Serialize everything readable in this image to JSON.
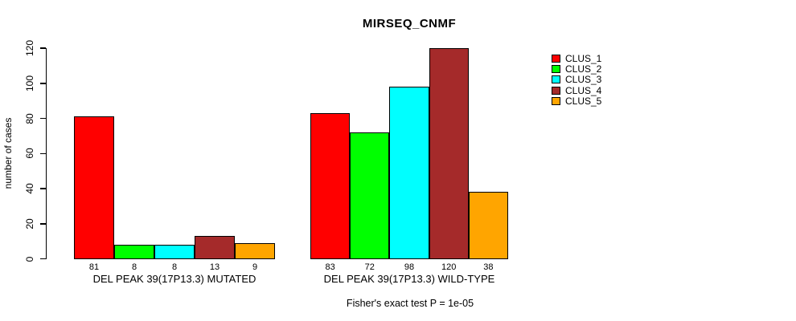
{
  "title": "MIRSEQ_CNMF",
  "chart_data": {
    "type": "bar",
    "title": "MIRSEQ_CNMF",
    "ylabel": "number of cases",
    "ylim": [
      0,
      120
    ],
    "yticks": [
      0,
      20,
      40,
      60,
      80,
      100,
      120
    ],
    "grid": false,
    "legend_position": "right",
    "categories": [
      "DEL PEAK 39(17P13.3) MUTATED",
      "DEL PEAK 39(17P13.3) WILD-TYPE"
    ],
    "series": [
      {
        "name": "CLUS_1",
        "color": "#ff0000",
        "values": [
          81,
          83
        ]
      },
      {
        "name": "CLUS_2",
        "color": "#00ff00",
        "values": [
          8,
          72
        ]
      },
      {
        "name": "CLUS_3",
        "color": "#00ffff",
        "values": [
          8,
          98
        ]
      },
      {
        "name": "CLUS_4",
        "color": "#a52a2a",
        "values": [
          13,
          120
        ]
      },
      {
        "name": "CLUS_5",
        "color": "#ffa500",
        "values": [
          9,
          38
        ]
      }
    ],
    "bar_value_labels": [
      [
        81,
        8,
        8,
        13,
        9
      ],
      [
        83,
        72,
        98,
        120,
        38
      ]
    ],
    "annotation": "Fisher's exact test P = 1e-05"
  }
}
